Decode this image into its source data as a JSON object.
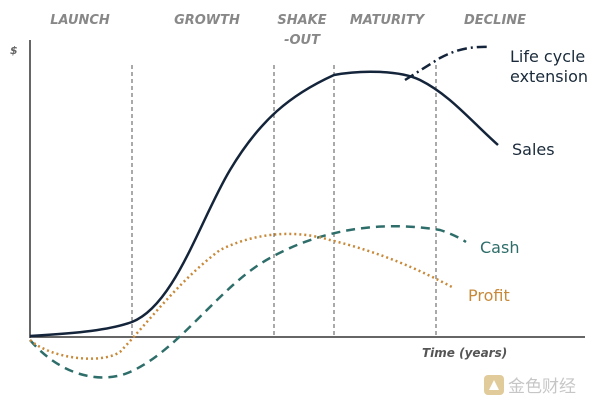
{
  "phases": [
    "LAUNCH",
    "GROWTH",
    "SHAKE",
    "-OUT",
    "MATURITY",
    "DECLINE"
  ],
  "y_axis_label": "$",
  "x_axis_label": "Time (years)",
  "curve_labels": {
    "extension": [
      "Life cycle",
      "extension"
    ],
    "sales": "Sales",
    "cash": "Cash",
    "profit": "Profit"
  },
  "watermark": "金色财经"
}
